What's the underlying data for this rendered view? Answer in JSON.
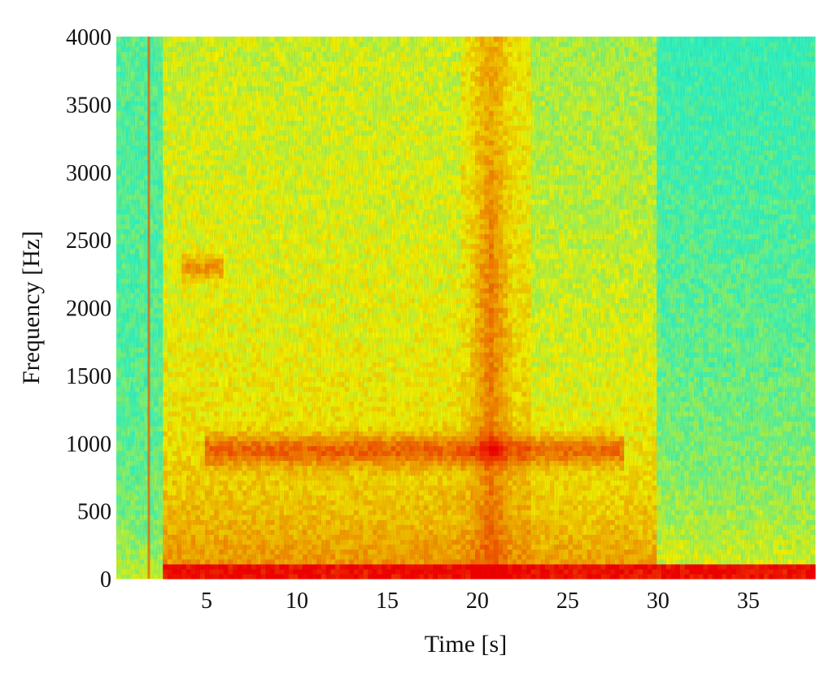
{
  "chart_data": {
    "type": "heatmap",
    "title": "",
    "xlabel": "Time [s]",
    "ylabel": "Frequency [Hz]",
    "xlim": [
      0,
      38.7
    ],
    "ylim": [
      0,
      4000
    ],
    "x_ticks": [
      5,
      10,
      15,
      20,
      25,
      30,
      35
    ],
    "x_tick_labels": [
      "5",
      "10",
      "15",
      "20",
      "25",
      "30",
      "35"
    ],
    "y_ticks": [
      0,
      500,
      1000,
      1500,
      2000,
      2500,
      3000,
      3500,
      4000
    ],
    "y_tick_labels": [
      "0",
      "500",
      "1000",
      "1500",
      "2000",
      "2500",
      "3000",
      "3500",
      "4000"
    ],
    "colormap": [
      "#00ffff",
      "#40ffbf",
      "#ffff00",
      "#ff8000",
      "#ff0000"
    ],
    "features": [
      {
        "kind": "low-frequency band",
        "t_start": 2.5,
        "t_end": 38.7,
        "f_max": 100,
        "level": 1.0
      },
      {
        "kind": "harmonic band",
        "t_start": 5,
        "t_end": 28,
        "f_center": 950,
        "level": 0.7
      },
      {
        "kind": "vertical broadband",
        "t_start": 19.5,
        "t_end": 22,
        "f_max": 4000,
        "level": 0.75
      },
      {
        "kind": "vertical line",
        "t": 1.8,
        "f_max": 4000,
        "level": 0.8
      },
      {
        "kind": "spot",
        "t_start": 3.5,
        "t_end": 6,
        "f_center": 2300,
        "level": 0.65
      }
    ]
  }
}
